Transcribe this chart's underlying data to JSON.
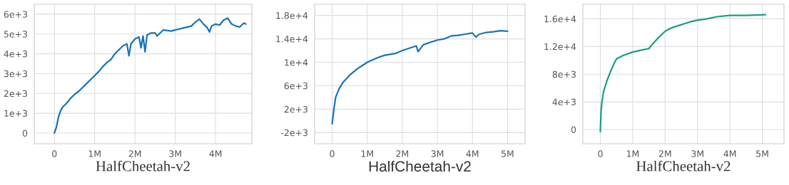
{
  "chart_data": [
    {
      "type": "line",
      "xlabel": "HalfCheetah-v2",
      "grid": true,
      "xlim": [
        -500000,
        4900000
      ],
      "xticks": [
        {
          "value": 0,
          "label": "0"
        },
        {
          "value": 1000000,
          "label": "1M"
        },
        {
          "value": 2000000,
          "label": "2M"
        },
        {
          "value": 3000000,
          "label": "3M"
        },
        {
          "value": 4000000,
          "label": "4M"
        }
      ],
      "ylim": [
        -540,
        6500
      ],
      "yticks": [
        {
          "value": 0,
          "label": "0"
        },
        {
          "value": 1000,
          "label": "1e+3"
        },
        {
          "value": 2000,
          "label": "2e+3"
        },
        {
          "value": 3000,
          "label": "3e+3"
        },
        {
          "value": 4000,
          "label": "4e+3"
        },
        {
          "value": 5000,
          "label": "5e+3"
        },
        {
          "value": 6000,
          "label": "6e+3"
        }
      ],
      "series": [
        {
          "color": "#1a73b8",
          "x": [
            0,
            50000,
            100000,
            150000,
            200000,
            300000,
            400000,
            500000,
            600000,
            700000,
            800000,
            900000,
            1000000,
            1100000,
            1200000,
            1300000,
            1400000,
            1500000,
            1600000,
            1700000,
            1800000,
            1850000,
            1900000,
            2000000,
            2100000,
            2150000,
            2200000,
            2250000,
            2300000,
            2400000,
            2500000,
            2550000,
            2700000,
            2900000,
            3000000,
            3200000,
            3400000,
            3500000,
            3600000,
            3700000,
            3800000,
            3850000,
            3900000,
            4000000,
            4100000,
            4200000,
            4300000,
            4400000,
            4500000,
            4600000,
            4700000,
            4750000
          ],
          "values": [
            0,
            300,
            800,
            1100,
            1300,
            1500,
            1750,
            1950,
            2100,
            2300,
            2500,
            2700,
            2900,
            3100,
            3350,
            3550,
            3700,
            4000,
            4200,
            4400,
            4500,
            3900,
            4500,
            4750,
            4850,
            4300,
            4900,
            4100,
            4950,
            5050,
            5050,
            4900,
            5200,
            5150,
            5200,
            5300,
            5400,
            5600,
            5750,
            5500,
            5300,
            5100,
            5400,
            5500,
            5450,
            5700,
            5800,
            5500,
            5400,
            5350,
            5550,
            5500
          ]
        }
      ]
    },
    {
      "type": "line",
      "xlabel": "HalfCheetah-v2",
      "grid": true,
      "xlim": [
        -500000,
        5500000
      ],
      "xticks": [
        {
          "value": 0,
          "label": "0"
        },
        {
          "value": 1000000,
          "label": "1M"
        },
        {
          "value": 2000000,
          "label": "2M"
        },
        {
          "value": 3000000,
          "label": "3M"
        },
        {
          "value": 4000000,
          "label": "4M"
        },
        {
          "value": 5000000,
          "label": "5M"
        }
      ],
      "ylim": [
        -3900,
        19900
      ],
      "yticks": [
        {
          "value": -2000,
          "label": "-2e+3"
        },
        {
          "value": 2000,
          "label": "2e+3"
        },
        {
          "value": 6000,
          "label": "6e+3"
        },
        {
          "value": 10000,
          "label": "1e+4"
        },
        {
          "value": 14000,
          "label": "1.4e+4"
        },
        {
          "value": 18000,
          "label": "1.8e+4"
        }
      ],
      "series": [
        {
          "color": "#1a73b8",
          "x": [
            0,
            50000,
            100000,
            200000,
            300000,
            500000,
            700000,
            1000000,
            1300000,
            1500000,
            1800000,
            2000000,
            2200000,
            2400000,
            2450000,
            2600000,
            2800000,
            3000000,
            3200000,
            3400000,
            3600000,
            3800000,
            4000000,
            4100000,
            4200000,
            4400000,
            4600000,
            4800000,
            5000000
          ],
          "values": [
            -500,
            2000,
            4000,
            5500,
            6500,
            7800,
            8800,
            10000,
            10800,
            11200,
            11500,
            12000,
            12400,
            12800,
            11800,
            13000,
            13400,
            13800,
            14000,
            14500,
            14600,
            14800,
            15000,
            14300,
            14800,
            15100,
            15200,
            15400,
            15300
          ]
        }
      ]
    },
    {
      "type": "line",
      "xlabel": "HalfCheetah-v2",
      "grid": true,
      "xlim": [
        -540000,
        5670000
      ],
      "xticks": [
        {
          "value": 0,
          "label": "0"
        },
        {
          "value": 1000000,
          "label": "1M"
        },
        {
          "value": 2000000,
          "label": "2M"
        },
        {
          "value": 3000000,
          "label": "3M"
        },
        {
          "value": 4000000,
          "label": "4M"
        },
        {
          "value": 5000000,
          "label": "5M"
        }
      ],
      "ylim": [
        -2050,
        18100
      ],
      "yticks": [
        {
          "value": 0,
          "label": "0"
        },
        {
          "value": 4000,
          "label": "4e+3"
        },
        {
          "value": 8000,
          "label": "8e+3"
        },
        {
          "value": 12000,
          "label": "1.2e+4"
        },
        {
          "value": 16000,
          "label": "1.6e+4"
        }
      ],
      "series": [
        {
          "color": "#1a9e85",
          "x": [
            0,
            20000,
            50000,
            100000,
            200000,
            300000,
            400000,
            500000,
            700000,
            1000000,
            1300000,
            1500000,
            1600000,
            1800000,
            2000000,
            2200000,
            2400000,
            2600000,
            2800000,
            3000000,
            3300000,
            3600000,
            4000000,
            4500000,
            5100000
          ],
          "values": [
            -300,
            2500,
            4000,
            5500,
            7000,
            8200,
            9300,
            10200,
            10700,
            11200,
            11500,
            11700,
            12300,
            13300,
            14200,
            14700,
            15000,
            15300,
            15600,
            15800,
            16000,
            16300,
            16500,
            16500,
            16600
          ]
        }
      ]
    }
  ]
}
